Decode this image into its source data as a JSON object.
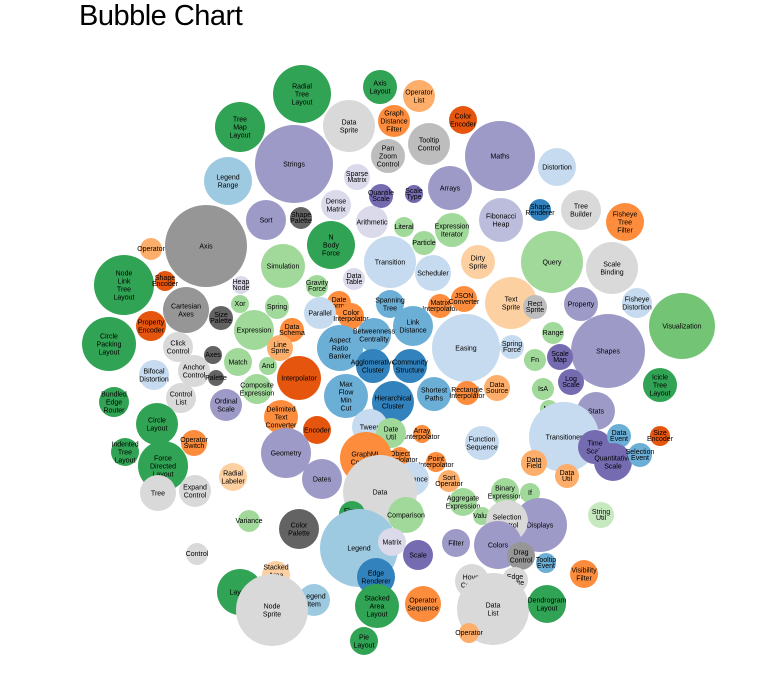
{
  "title": "Bubble Chart",
  "palette": {
    "green_dark": "#31a354",
    "green_light": "#a1d99b",
    "blue_dark": "#3182bd",
    "blue_mid": "#6baed6",
    "blue_light": "#9ecae1",
    "blue_pale": "#c6dbef",
    "orange_dark": "#e6550d",
    "orange_mid": "#fd8d3c",
    "orange_light": "#fdd0a2",
    "purple_dark": "#756bb1",
    "purple_mid": "#9e9ac8",
    "purple_light": "#dadaeb",
    "gray_dark": "#636363",
    "gray_mid": "#969696",
    "gray_light": "#d9d9d9"
  },
  "chart_data": {
    "type": "bubble",
    "title": "Bubble Chart",
    "bubbles": [
      {
        "label": "Radial Tree Layout",
        "r": 29,
        "color": "#31a354"
      },
      {
        "label": "Axis Layout",
        "r": 17,
        "color": "#31a354"
      },
      {
        "label": "Operator List",
        "r": 16,
        "color": "#fdae6b"
      },
      {
        "label": "Data Sprite",
        "r": 26,
        "color": "#d9d9d9"
      },
      {
        "label": "Graph Distance Filter",
        "r": 16,
        "color": "#fd8d3c"
      },
      {
        "label": "Color Encoder",
        "r": 14,
        "color": "#e6550d"
      },
      {
        "label": "Tree Map Layout",
        "r": 25,
        "color": "#31a354"
      },
      {
        "label": "Strings",
        "r": 39,
        "color": "#9e9ac8"
      },
      {
        "label": "Tooltip Control",
        "r": 21,
        "color": "#bdbdbd"
      },
      {
        "label": "Maths",
        "r": 35,
        "color": "#9e9ac8"
      },
      {
        "label": "Pan Zoom Control",
        "r": 17,
        "color": "#bdbdbd"
      },
      {
        "label": "Distortion",
        "r": 19,
        "color": "#c6dbef"
      },
      {
        "label": "Legend Range",
        "r": 24,
        "color": "#9ecae1"
      },
      {
        "label": "Sparse Matrix",
        "r": 13,
        "color": "#dadaeb"
      },
      {
        "label": "Arrays",
        "r": 22,
        "color": "#9e9ac8"
      },
      {
        "label": "Quantile Scale",
        "r": 12,
        "color": "#756bb1"
      },
      {
        "label": "Scale Type",
        "r": 9,
        "color": "#756bb1"
      },
      {
        "label": "Tree Builder",
        "r": 20,
        "color": "#d9d9d9"
      },
      {
        "label": "Shape Renderer",
        "r": 11,
        "color": "#3182bd"
      },
      {
        "label": "Fisheye Tree Filter",
        "r": 19,
        "color": "#fd8d3c"
      },
      {
        "label": "Dense Matrix",
        "r": 15,
        "color": "#dadaeb"
      },
      {
        "label": "Fibonacci Heap",
        "r": 22,
        "color": "#bcbddc"
      },
      {
        "label": "Sort",
        "r": 20,
        "color": "#9e9ac8"
      },
      {
        "label": "Shape Palette",
        "r": 11,
        "color": "#636363"
      },
      {
        "label": "Arithmetic",
        "r": 16,
        "color": "#dadaeb"
      },
      {
        "label": "Expression Iterator",
        "r": 17,
        "color": "#a1d99b"
      },
      {
        "label": "Axis",
        "r": 41,
        "color": "#969696"
      },
      {
        "label": "N Body Force",
        "r": 24,
        "color": "#31a354"
      },
      {
        "label": "Literal",
        "r": 10,
        "color": "#a1d99b"
      },
      {
        "label": "Particle",
        "r": 12,
        "color": "#a1d99b"
      },
      {
        "label": "Query",
        "r": 31,
        "color": "#a1d99b"
      },
      {
        "label": "Operator",
        "r": 11,
        "color": "#fdae6b"
      },
      {
        "label": "Simulation",
        "r": 22,
        "color": "#a1d99b"
      },
      {
        "label": "Transition",
        "r": 26,
        "color": "#c6dbef"
      },
      {
        "label": "Scheduler",
        "r": 18,
        "color": "#c6dbef"
      },
      {
        "label": "Dirty Sprite",
        "r": 17,
        "color": "#fdd0a2"
      },
      {
        "label": "Scale Binding",
        "r": 26,
        "color": "#d9d9d9"
      },
      {
        "label": "Node Link Tree Layout",
        "r": 30,
        "color": "#31a354"
      },
      {
        "label": "Shape Encoder",
        "r": 10,
        "color": "#e6550d"
      },
      {
        "label": "Heap Node",
        "r": 9,
        "color": "#dadaeb"
      },
      {
        "label": "Gravity Force",
        "r": 11,
        "color": "#a1d99b"
      },
      {
        "label": "Data Table",
        "r": 11,
        "color": "#dadaeb"
      },
      {
        "label": "Cartesian Axes",
        "r": 23,
        "color": "#969696"
      },
      {
        "label": "Xor",
        "r": 9,
        "color": "#a1d99b"
      },
      {
        "label": "Spring",
        "r": 12,
        "color": "#a1d99b"
      },
      {
        "label": "Date Format",
        "r": 12,
        "color": "#fd8d3c"
      },
      {
        "label": "Spanning Tree",
        "r": 14,
        "color": "#6baed6"
      },
      {
        "label": "Matrix Interpolator",
        "r": 12,
        "color": "#fd8d3c"
      },
      {
        "label": "JSON Converter",
        "r": 13,
        "color": "#fd8d3c"
      },
      {
        "label": "Text Sprite",
        "r": 26,
        "color": "#fdd0a2"
      },
      {
        "label": "Rect Sprite",
        "r": 12,
        "color": "#bdbdbd"
      },
      {
        "label": "Property",
        "r": 17,
        "color": "#9e9ac8"
      },
      {
        "label": "Fisheye Distortion",
        "r": 15,
        "color": "#c6dbef"
      },
      {
        "label": "Visualization",
        "r": 33,
        "color": "#74c476"
      },
      {
        "label": "Property Encoder",
        "r": 15,
        "color": "#e6550d"
      },
      {
        "label": "Size Palette",
        "r": 12,
        "color": "#636363"
      },
      {
        "label": "Expression",
        "r": 20,
        "color": "#a1d99b"
      },
      {
        "label": "Data Schema",
        "r": 12,
        "color": "#fd8d3c"
      },
      {
        "label": "Parallel",
        "r": 16,
        "color": "#c6dbef"
      },
      {
        "label": "Color Interpolator",
        "r": 13,
        "color": "#fd8d3c"
      },
      {
        "label": "Link Distance",
        "r": 20,
        "color": "#6baed6"
      },
      {
        "label": "Easing",
        "r": 34,
        "color": "#c6dbef"
      },
      {
        "label": "Range",
        "r": 11,
        "color": "#a1d99b"
      },
      {
        "label": "Shapes",
        "r": 37,
        "color": "#9e9ac8"
      },
      {
        "label": "Circle Packing Layout",
        "r": 27,
        "color": "#31a354"
      },
      {
        "label": "Click Control",
        "r": 15,
        "color": "#d9d9d9"
      },
      {
        "label": "Match",
        "r": 14,
        "color": "#a1d99b"
      },
      {
        "label": "Line Sprite",
        "r": 13,
        "color": "#fdae6b"
      },
      {
        "label": "Aspect Ratio Banker",
        "r": 23,
        "color": "#6baed6"
      },
      {
        "label": "Betweenness Centrality",
        "r": 17,
        "color": "#6baed6"
      },
      {
        "label": "Spring Force",
        "r": 12,
        "color": "#c6dbef"
      },
      {
        "label": "Fn",
        "r": 11,
        "color": "#a1d99b"
      },
      {
        "label": "Scale Map",
        "r": 13,
        "color": "#756bb1"
      },
      {
        "label": "Anchor Control",
        "r": 16,
        "color": "#d9d9d9"
      },
      {
        "label": "Axes",
        "r": 9,
        "color": "#636363"
      },
      {
        "label": "And",
        "r": 9,
        "color": "#a1d99b"
      },
      {
        "label": "Interpolator",
        "r": 22,
        "color": "#e6550d"
      },
      {
        "label": "Agglomerative Cluster",
        "r": 17,
        "color": "#3182bd"
      },
      {
        "label": "Community Structure",
        "r": 17,
        "color": "#3182bd"
      },
      {
        "label": "Log Scale",
        "r": 13,
        "color": "#756bb1"
      },
      {
        "label": "Bifocal Distortion",
        "r": 15,
        "color": "#c6dbef"
      },
      {
        "label": "Palette",
        "r": 8,
        "color": "#636363"
      },
      {
        "label": "Composite Expression",
        "r": 15,
        "color": "#a1d99b"
      },
      {
        "label": "Max Flow Min Cut",
        "r": 22,
        "color": "#6baed6"
      },
      {
        "label": "Shortest Paths",
        "r": 17,
        "color": "#6baed6"
      },
      {
        "label": "Rectangle Interpolator",
        "r": 12,
        "color": "#fd8d3c"
      },
      {
        "label": "Data Source",
        "r": 13,
        "color": "#fdae6b"
      },
      {
        "label": "IsA",
        "r": 11,
        "color": "#a1d99b"
      },
      {
        "label": "Icicle Tree Layout",
        "r": 17,
        "color": "#31a354"
      },
      {
        "label": "Control List",
        "r": 15,
        "color": "#d9d9d9"
      },
      {
        "label": "Ordinal Scale",
        "r": 16,
        "color": "#9e9ac8"
      },
      {
        "label": "Delimited Text Converter",
        "r": 17,
        "color": "#fd8d3c"
      },
      {
        "label": "Hierarchical Cluster",
        "r": 21,
        "color": "#3182bd"
      },
      {
        "label": "Not",
        "r": 9,
        "color": "#a1d99b"
      },
      {
        "label": "Stats",
        "r": 19,
        "color": "#9e9ac8"
      },
      {
        "label": "Bundled Edge Router",
        "r": 15,
        "color": "#31a354"
      },
      {
        "label": "Circle Layout",
        "r": 21,
        "color": "#31a354"
      },
      {
        "label": "Encoder",
        "r": 14,
        "color": "#e6550d"
      },
      {
        "label": "Tween",
        "r": 18,
        "color": "#c6dbef"
      },
      {
        "label": "Array Interpolator",
        "r": 9,
        "color": "#fd8d3c"
      },
      {
        "label": "Function Sequence",
        "r": 17,
        "color": "#c6dbef"
      },
      {
        "label": "Transitioner",
        "r": 35,
        "color": "#c6dbef"
      },
      {
        "label": "Time Scale",
        "r": 17,
        "color": "#756bb1"
      },
      {
        "label": "Data Event",
        "r": 12,
        "color": "#6baed6"
      },
      {
        "label": "Size Encoder",
        "r": 10,
        "color": "#e6550d"
      },
      {
        "label": "Operator Switch",
        "r": 13,
        "color": "#fd8d3c"
      },
      {
        "label": "Geometry",
        "r": 25,
        "color": "#9e9ac8"
      },
      {
        "label": "Date Util",
        "r": 15,
        "color": "#a1d99b"
      },
      {
        "label": "Object Interpolator",
        "r": 10,
        "color": "#fd8d3c"
      },
      {
        "label": "Point Interpolator",
        "r": 10,
        "color": "#fd8d3c"
      },
      {
        "label": "Data Field",
        "r": 13,
        "color": "#fdae6b"
      },
      {
        "label": "Quantitative Scale",
        "r": 19,
        "color": "#756bb1"
      },
      {
        "label": "Selection Event",
        "r": 12,
        "color": "#6baed6"
      },
      {
        "label": "Indented Tree Layout",
        "r": 14,
        "color": "#31a354"
      },
      {
        "label": "Force Directed Layout",
        "r": 25,
        "color": "#31a354"
      },
      {
        "label": "Radial Labeler",
        "r": 14,
        "color": "#fdd0a2"
      },
      {
        "label": "Dates",
        "r": 20,
        "color": "#9e9ac8"
      },
      {
        "label": "GraphML Converter",
        "r": 26,
        "color": "#fd8d3c"
      },
      {
        "label": "Sequence",
        "r": 17,
        "color": "#c6dbef"
      },
      {
        "label": "Data Util",
        "r": 12,
        "color": "#fdae6b"
      },
      {
        "label": "Expand Control",
        "r": 16,
        "color": "#d9d9d9"
      },
      {
        "label": "Tree",
        "r": 18,
        "color": "#d9d9d9"
      },
      {
        "label": "Sort Operator",
        "r": 11,
        "color": "#fdae6b"
      },
      {
        "label": "Aggregate Expression",
        "r": 14,
        "color": "#a1d99b"
      },
      {
        "label": "Binary Expression",
        "r": 14,
        "color": "#a1d99b"
      },
      {
        "label": "String Util",
        "r": 13,
        "color": "#c7e9c0"
      },
      {
        "label": "Data",
        "r": 37,
        "color": "#d9d9d9"
      },
      {
        "label": "Flare Vis",
        "r": 13,
        "color": "#31a354"
      },
      {
        "label": "Comparison",
        "r": 18,
        "color": "#a1d99b"
      },
      {
        "label": "If",
        "r": 10,
        "color": "#a1d99b"
      },
      {
        "label": "Value",
        "r": 9,
        "color": "#a1d99b"
      },
      {
        "label": "Variance",
        "r": 11,
        "color": "#a1d99b"
      },
      {
        "label": "Color Palette",
        "r": 20,
        "color": "#636363"
      },
      {
        "label": "Displays",
        "r": 27,
        "color": "#9e9ac8"
      },
      {
        "label": "Selection Control",
        "r": 21,
        "color": "#d9d9d9"
      },
      {
        "label": "Control",
        "r": 11,
        "color": "#d9d9d9"
      },
      {
        "label": "Legend",
        "r": 39,
        "color": "#9ecae1"
      },
      {
        "label": "Matrix",
        "r": 14,
        "color": "#dadaeb"
      },
      {
        "label": "Scale",
        "r": 15,
        "color": "#756bb1"
      },
      {
        "label": "Filter",
        "r": 14,
        "color": "#9e9ac8"
      },
      {
        "label": "Colors",
        "r": 24,
        "color": "#9e9ac8"
      },
      {
        "label": "Drag Control",
        "r": 14,
        "color": "#969696"
      },
      {
        "label": "Tooltip Event",
        "r": 10,
        "color": "#6baed6"
      },
      {
        "label": "Stacked Area Labeler",
        "r": 14,
        "color": "#fdd0a2"
      },
      {
        "label": "Edge Renderer",
        "r": 19,
        "color": "#3182bd"
      },
      {
        "label": "Hover Control",
        "r": 17,
        "color": "#d9d9d9"
      },
      {
        "label": "Edge Sprite",
        "r": 13,
        "color": "#d9d9d9"
      },
      {
        "label": "Visibility Filter",
        "r": 14,
        "color": "#fd8d3c"
      },
      {
        "label": "Layout",
        "r": 23,
        "color": "#31a354"
      },
      {
        "label": "Legend Item",
        "r": 16,
        "color": "#9ecae1"
      },
      {
        "label": "Node Sprite",
        "r": 36,
        "color": "#d9d9d9"
      },
      {
        "label": "Operator Sequence",
        "r": 18,
        "color": "#fd8d3c"
      },
      {
        "label": "Data List",
        "r": 36,
        "color": "#d9d9d9"
      },
      {
        "label": "Dendrogram Layout",
        "r": 19,
        "color": "#31a354"
      },
      {
        "label": "Stacked Area Layout",
        "r": 22,
        "color": "#31a354"
      },
      {
        "label": "Operator",
        "r": 10,
        "color": "#fdae6b"
      },
      {
        "label": "Pie Layout",
        "r": 14,
        "color": "#31a354"
      },
      {
        "label": "Labeler",
        "r": 25,
        "color": "#fdd0a2"
      }
    ]
  }
}
